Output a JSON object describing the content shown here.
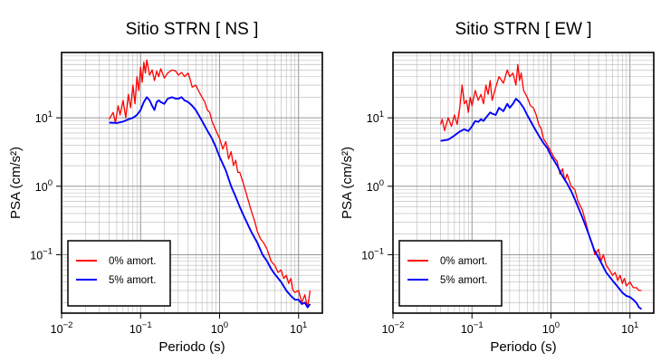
{
  "chart_data": [
    {
      "type": "line",
      "title": "Sitio STRN [ NS ]",
      "xlabel": "Periodo (s)",
      "ylabel": "PSA (cm/s²)",
      "xscale": "log",
      "yscale": "log",
      "xlim": [
        0.01,
        20
      ],
      "ylim": [
        0.014,
        90
      ],
      "grid": true,
      "legend_position": "bottom-left",
      "xticks": [
        {
          "value": 0.01,
          "base": "10",
          "exp": "−2"
        },
        {
          "value": 0.1,
          "base": "10",
          "exp": "−1"
        },
        {
          "value": 1,
          "base": "10",
          "exp": "0"
        },
        {
          "value": 10,
          "base": "10",
          "exp": "1"
        }
      ],
      "yticks": [
        {
          "value": 0.1,
          "base": "10",
          "exp": "−1"
        },
        {
          "value": 1,
          "base": "10",
          "exp": "0"
        },
        {
          "value": 10,
          "base": "10",
          "exp": "1"
        }
      ],
      "series": [
        {
          "name": "0% amort.",
          "color": "#ff0000",
          "points": [
            [
              0.04,
              9.5
            ],
            [
              0.045,
              12
            ],
            [
              0.048,
              8.5
            ],
            [
              0.052,
              15
            ],
            [
              0.055,
              11
            ],
            [
              0.06,
              18
            ],
            [
              0.065,
              10
            ],
            [
              0.07,
              22
            ],
            [
              0.075,
              14
            ],
            [
              0.08,
              30
            ],
            [
              0.085,
              16
            ],
            [
              0.09,
              40
            ],
            [
              0.095,
              25
            ],
            [
              0.1,
              55
            ],
            [
              0.105,
              33
            ],
            [
              0.11,
              65
            ],
            [
              0.115,
              45
            ],
            [
              0.12,
              70
            ],
            [
              0.13,
              42
            ],
            [
              0.14,
              50
            ],
            [
              0.15,
              35
            ],
            [
              0.16,
              48
            ],
            [
              0.17,
              40
            ],
            [
              0.18,
              52
            ],
            [
              0.2,
              38
            ],
            [
              0.22,
              45
            ],
            [
              0.25,
              50
            ],
            [
              0.28,
              48
            ],
            [
              0.3,
              42
            ],
            [
              0.33,
              46
            ],
            [
              0.36,
              40
            ],
            [
              0.4,
              45
            ],
            [
              0.42,
              38
            ],
            [
              0.45,
              28
            ],
            [
              0.5,
              30
            ],
            [
              0.55,
              24
            ],
            [
              0.6,
              20
            ],
            [
              0.65,
              17
            ],
            [
              0.7,
              13
            ],
            [
              0.75,
              12
            ],
            [
              0.8,
              9
            ],
            [
              0.9,
              6.5
            ],
            [
              1,
              5
            ],
            [
              1.1,
              3.5
            ],
            [
              1.2,
              4.5
            ],
            [
              1.3,
              2.5
            ],
            [
              1.4,
              3.2
            ],
            [
              1.5,
              2
            ],
            [
              1.6,
              2.4
            ],
            [
              1.7,
              1.6
            ],
            [
              1.8,
              1.6
            ],
            [
              2,
              1.1
            ],
            [
              2.2,
              0.75
            ],
            [
              2.5,
              0.45
            ],
            [
              2.8,
              0.3
            ],
            [
              3,
              0.22
            ],
            [
              3.3,
              0.17
            ],
            [
              3.6,
              0.15
            ],
            [
              4,
              0.12
            ],
            [
              4.5,
              0.08
            ],
            [
              5,
              0.07
            ],
            [
              5.5,
              0.055
            ],
            [
              6,
              0.06
            ],
            [
              6.5,
              0.045
            ],
            [
              7,
              0.05
            ],
            [
              7.5,
              0.038
            ],
            [
              8,
              0.045
            ],
            [
              8.5,
              0.03
            ],
            [
              9,
              0.028
            ],
            [
              10,
              0.03
            ],
            [
              11,
              0.02
            ],
            [
              12,
              0.026
            ],
            [
              13,
              0.017
            ],
            [
              14,
              0.03
            ]
          ]
        },
        {
          "name": "5% amort.",
          "color": "#0000ff",
          "points": [
            [
              0.04,
              8.5
            ],
            [
              0.05,
              8.4
            ],
            [
              0.06,
              8.8
            ],
            [
              0.07,
              9.5
            ],
            [
              0.08,
              10
            ],
            [
              0.09,
              11
            ],
            [
              0.1,
              13
            ],
            [
              0.11,
              17
            ],
            [
              0.12,
              20
            ],
            [
              0.13,
              18
            ],
            [
              0.14,
              15
            ],
            [
              0.15,
              13
            ],
            [
              0.16,
              17
            ],
            [
              0.17,
              18
            ],
            [
              0.18,
              17
            ],
            [
              0.2,
              16
            ],
            [
              0.22,
              19
            ],
            [
              0.25,
              20
            ],
            [
              0.28,
              19
            ],
            [
              0.3,
              19
            ],
            [
              0.33,
              20
            ],
            [
              0.36,
              18
            ],
            [
              0.4,
              17
            ],
            [
              0.45,
              15
            ],
            [
              0.5,
              13
            ],
            [
              0.6,
              9
            ],
            [
              0.7,
              6.5
            ],
            [
              0.8,
              5
            ],
            [
              0.9,
              3.7
            ],
            [
              1,
              2.7
            ],
            [
              1.2,
              1.7
            ],
            [
              1.4,
              1
            ],
            [
              1.6,
              0.7
            ],
            [
              1.8,
              0.5
            ],
            [
              2,
              0.38
            ],
            [
              2.5,
              0.22
            ],
            [
              3,
              0.15
            ],
            [
              3.5,
              0.1
            ],
            [
              4,
              0.08
            ],
            [
              4.5,
              0.062
            ],
            [
              5,
              0.052
            ],
            [
              6,
              0.04
            ],
            [
              7,
              0.03
            ],
            [
              8,
              0.025
            ],
            [
              9,
              0.022
            ],
            [
              10,
              0.022
            ],
            [
              11,
              0.019
            ],
            [
              12,
              0.02
            ],
            [
              13,
              0.017
            ],
            [
              14,
              0.019
            ]
          ]
        }
      ]
    },
    {
      "type": "line",
      "title": "Sitio STRN [ EW ]",
      "xlabel": "Periodo (s)",
      "ylabel": "PSA (cm/s²)",
      "xscale": "log",
      "yscale": "log",
      "xlim": [
        0.01,
        20
      ],
      "ylim": [
        0.014,
        90
      ],
      "grid": true,
      "legend_position": "bottom-left",
      "xticks": [
        {
          "value": 0.01,
          "base": "10",
          "exp": "−2"
        },
        {
          "value": 0.1,
          "base": "10",
          "exp": "−1"
        },
        {
          "value": 1,
          "base": "10",
          "exp": "0"
        },
        {
          "value": 10,
          "base": "10",
          "exp": "1"
        }
      ],
      "yticks": [
        {
          "value": 0.1,
          "base": "10",
          "exp": "−1"
        },
        {
          "value": 1,
          "base": "10",
          "exp": "0"
        },
        {
          "value": 10,
          "base": "10",
          "exp": "1"
        }
      ],
      "series": [
        {
          "name": "0% amort.",
          "color": "#ff0000",
          "points": [
            [
              0.04,
              8
            ],
            [
              0.042,
              9.5
            ],
            [
              0.045,
              6.5
            ],
            [
              0.05,
              10
            ],
            [
              0.055,
              7.5
            ],
            [
              0.06,
              11
            ],
            [
              0.065,
              8
            ],
            [
              0.07,
              14
            ],
            [
              0.075,
              30
            ],
            [
              0.08,
              16
            ],
            [
              0.085,
              18
            ],
            [
              0.09,
              12
            ],
            [
              0.095,
              20
            ],
            [
              0.1,
              15
            ],
            [
              0.11,
              25
            ],
            [
              0.12,
              18
            ],
            [
              0.13,
              22
            ],
            [
              0.14,
              16
            ],
            [
              0.15,
              30
            ],
            [
              0.16,
              22
            ],
            [
              0.17,
              35
            ],
            [
              0.18,
              18
            ],
            [
              0.2,
              28
            ],
            [
              0.22,
              40
            ],
            [
              0.25,
              32
            ],
            [
              0.28,
              50
            ],
            [
              0.3,
              40
            ],
            [
              0.33,
              45
            ],
            [
              0.36,
              30
            ],
            [
              0.38,
              60
            ],
            [
              0.4,
              35
            ],
            [
              0.42,
              45
            ],
            [
              0.45,
              25
            ],
            [
              0.5,
              20
            ],
            [
              0.55,
              15
            ],
            [
              0.6,
              14
            ],
            [
              0.65,
              11
            ],
            [
              0.7,
              8
            ],
            [
              0.75,
              7
            ],
            [
              0.8,
              5
            ],
            [
              0.9,
              4
            ],
            [
              1,
              3.2
            ],
            [
              1.1,
              2.6
            ],
            [
              1.2,
              2.3
            ],
            [
              1.3,
              1.5
            ],
            [
              1.4,
              1.8
            ],
            [
              1.5,
              1.2
            ],
            [
              1.6,
              1.5
            ],
            [
              1.8,
              1
            ],
            [
              2,
              0.9
            ],
            [
              2.2,
              0.6
            ],
            [
              2.5,
              0.45
            ],
            [
              2.8,
              0.28
            ],
            [
              3,
              0.2
            ],
            [
              3.3,
              0.15
            ],
            [
              3.6,
              0.1
            ],
            [
              4,
              0.12
            ],
            [
              4.3,
              0.08
            ],
            [
              4.6,
              0.1
            ],
            [
              5,
              0.07
            ],
            [
              5.5,
              0.06
            ],
            [
              6,
              0.05
            ],
            [
              6.5,
              0.055
            ],
            [
              7,
              0.042
            ],
            [
              7.5,
              0.05
            ],
            [
              8,
              0.038
            ],
            [
              8.5,
              0.045
            ],
            [
              9,
              0.035
            ],
            [
              10,
              0.04
            ],
            [
              11,
              0.033
            ],
            [
              12,
              0.033
            ],
            [
              13,
              0.03
            ],
            [
              14,
              0.03
            ]
          ]
        },
        {
          "name": "5% amort.",
          "color": "#0000ff",
          "points": [
            [
              0.04,
              4.6
            ],
            [
              0.05,
              4.8
            ],
            [
              0.06,
              5.5
            ],
            [
              0.07,
              6.3
            ],
            [
              0.08,
              6.8
            ],
            [
              0.09,
              6.4
            ],
            [
              0.1,
              7.5
            ],
            [
              0.11,
              9
            ],
            [
              0.12,
              8.7
            ],
            [
              0.13,
              9.5
            ],
            [
              0.14,
              9
            ],
            [
              0.15,
              10
            ],
            [
              0.16,
              11
            ],
            [
              0.17,
              12
            ],
            [
              0.18,
              11.5
            ],
            [
              0.2,
              11
            ],
            [
              0.22,
              14
            ],
            [
              0.25,
              12.5
            ],
            [
              0.28,
              16
            ],
            [
              0.3,
              14
            ],
            [
              0.33,
              16
            ],
            [
              0.36,
              19
            ],
            [
              0.4,
              17
            ],
            [
              0.45,
              14
            ],
            [
              0.5,
              11
            ],
            [
              0.6,
              7.5
            ],
            [
              0.7,
              5.5
            ],
            [
              0.8,
              4.3
            ],
            [
              0.9,
              3.6
            ],
            [
              1,
              2.8
            ],
            [
              1.2,
              2
            ],
            [
              1.4,
              1.4
            ],
            [
              1.6,
              1.1
            ],
            [
              1.8,
              0.85
            ],
            [
              2,
              0.65
            ],
            [
              2.5,
              0.35
            ],
            [
              3,
              0.2
            ],
            [
              3.5,
              0.12
            ],
            [
              4,
              0.09
            ],
            [
              4.5,
              0.07
            ],
            [
              5,
              0.055
            ],
            [
              6,
              0.042
            ],
            [
              7,
              0.034
            ],
            [
              8,
              0.028
            ],
            [
              9,
              0.025
            ],
            [
              10,
              0.024
            ],
            [
              11,
              0.022
            ],
            [
              12,
              0.02
            ],
            [
              13,
              0.017
            ],
            [
              14,
              0.016
            ]
          ]
        }
      ]
    }
  ]
}
